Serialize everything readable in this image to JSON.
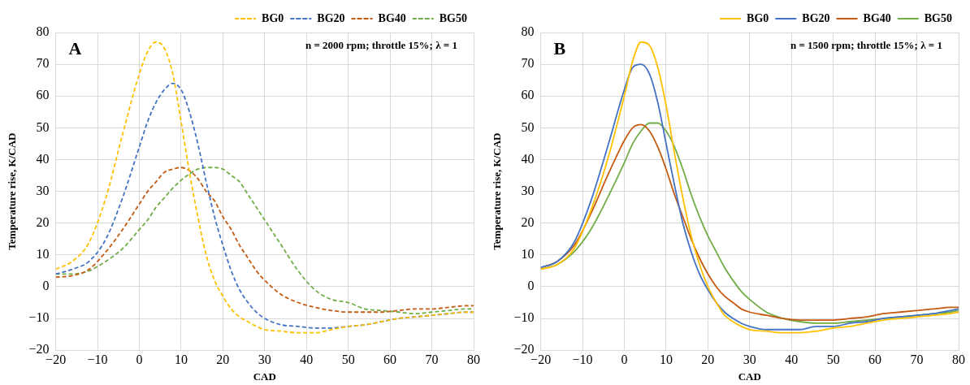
{
  "chart_data": [
    {
      "type": "line",
      "xlabel": "CAD",
      "ylabel": "Temperature rise, K/CAD",
      "annotations": [
        "A",
        "n = 2000 rpm; throttle 15%; λ = 1"
      ],
      "x": [
        -20,
        -16,
        -12,
        -8,
        -4,
        0,
        2,
        4,
        6,
        8,
        10,
        12,
        14,
        16,
        18,
        20,
        22,
        24,
        26,
        28,
        30,
        34,
        38,
        42,
        46,
        50,
        54,
        58,
        62,
        66,
        70,
        74,
        78,
        80
      ],
      "series": [
        {
          "name": "BG0",
          "color": "#ffc000",
          "values": [
            5.5,
            8,
            14,
            28,
            48,
            67,
            74,
            77,
            75,
            67,
            52,
            36,
            22,
            10,
            2,
            -3,
            -7,
            -9.5,
            -11,
            -12.5,
            -13.5,
            -14,
            -14.5,
            -14.5,
            -13.5,
            -12.5,
            -12,
            -11,
            -10,
            -9.5,
            -9,
            -8.5,
            -8,
            -8
          ]
        },
        {
          "name": "BG20",
          "color": "#4472c4",
          "values": [
            4,
            5.5,
            8,
            15,
            28,
            44,
            52,
            58,
            62,
            64,
            62,
            55,
            45,
            33,
            22,
            13,
            5,
            -1,
            -5,
            -8,
            -10,
            -12,
            -12.5,
            -13,
            -13,
            -12.5,
            -12,
            -11,
            -10,
            -9.5,
            -9,
            -8.5,
            -8,
            -8
          ]
        },
        {
          "name": "BG40",
          "color": "#c55a11",
          "values": [
            3,
            3.5,
            5.5,
            11,
            18,
            26,
            30,
            33,
            36,
            37,
            37.5,
            36.5,
            34,
            30,
            27,
            22,
            18,
            13,
            9,
            5,
            2,
            -2.5,
            -5,
            -6.5,
            -7.5,
            -8,
            -8,
            -8,
            -7.5,
            -7,
            -7,
            -6.5,
            -6,
            -6
          ]
        },
        {
          "name": "BG50",
          "color": "#70ad47",
          "values": [
            4,
            4,
            5,
            8,
            12,
            18,
            21,
            25,
            28,
            31,
            33.5,
            35.5,
            37,
            37.5,
            37.5,
            37,
            35,
            33,
            29,
            25,
            21,
            13,
            5,
            -1,
            -4,
            -5,
            -7,
            -7.5,
            -8,
            -8.5,
            -8,
            -7.5,
            -7,
            -7
          ]
        }
      ],
      "xlim": [
        -20,
        80
      ],
      "xticks": [
        -20,
        -10,
        0,
        10,
        20,
        30,
        40,
        50,
        60,
        70,
        80
      ],
      "ylim": [
        -20,
        80
      ],
      "yticks": [
        -20,
        -10,
        0,
        10,
        20,
        30,
        40,
        50,
        60,
        70,
        80
      ],
      "grid": true,
      "legend": "top right",
      "marker": "none",
      "line_style": "dashed"
    },
    {
      "type": "line",
      "xlabel": "CAD",
      "ylabel": "Temperature rise, K/CAD",
      "annotations": [
        "B",
        "n = 1500 rpm; throttle 15%; λ = 1"
      ],
      "x": [
        -20,
        -16,
        -12,
        -8,
        -4,
        0,
        2,
        4,
        6,
        8,
        10,
        12,
        14,
        16,
        18,
        20,
        22,
        24,
        26,
        28,
        30,
        34,
        38,
        42,
        46,
        50,
        54,
        58,
        62,
        66,
        70,
        74,
        78,
        80
      ],
      "series": [
        {
          "name": "BG0",
          "color": "#ffc000",
          "values": [
            5.5,
            7,
            12,
            24,
            40,
            60,
            71,
            77,
            76,
            69,
            57,
            42,
            28,
            16,
            7,
            0,
            -5,
            -9,
            -11,
            -12.5,
            -13.5,
            -14,
            -14.5,
            -14.5,
            -14,
            -13,
            -12.5,
            -11.5,
            -10.5,
            -10,
            -9.5,
            -9,
            -8.5,
            -8
          ]
        },
        {
          "name": "BG20",
          "color": "#4472c4",
          "values": [
            6,
            8,
            14,
            27,
            44,
            62,
            69,
            70,
            67,
            58,
            45,
            32,
            20,
            11,
            4,
            -1,
            -5,
            -8,
            -10,
            -11.5,
            -12.5,
            -13.5,
            -13.5,
            -13.5,
            -12.5,
            -12.5,
            -11.5,
            -11,
            -10,
            -9.5,
            -9,
            -8.5,
            -7.5,
            -7
          ]
        },
        {
          "name": "BG40",
          "color": "#c55a11",
          "values": [
            6,
            8,
            13,
            23,
            35,
            46,
            50,
            51,
            49,
            44,
            37,
            29,
            22,
            15,
            9,
            4,
            0,
            -3,
            -5,
            -7,
            -8,
            -9,
            -10,
            -10.5,
            -10.5,
            -10.5,
            -10,
            -9.5,
            -8.5,
            -8,
            -7.5,
            -7,
            -6.5,
            -6.5
          ]
        },
        {
          "name": "BG50",
          "color": "#70ad47",
          "values": [
            5.5,
            7,
            11,
            18,
            28,
            39,
            45,
            49,
            51.5,
            51.5,
            49,
            44,
            37,
            29,
            22,
            16,
            11,
            6,
            2,
            -1.5,
            -4,
            -8,
            -10,
            -11,
            -11.5,
            -11.5,
            -11,
            -10.5,
            -10,
            -9.5,
            -9,
            -8.5,
            -8,
            -7.5
          ]
        }
      ],
      "xlim": [
        -20,
        80
      ],
      "xticks": [
        -20,
        -10,
        0,
        10,
        20,
        30,
        40,
        50,
        60,
        70,
        80
      ],
      "ylim": [
        -20,
        80
      ],
      "yticks": [
        -20,
        -10,
        0,
        10,
        20,
        30,
        40,
        50,
        60,
        70,
        80
      ],
      "grid": true,
      "legend": "top right",
      "marker": "none",
      "line_style": "solid"
    }
  ]
}
